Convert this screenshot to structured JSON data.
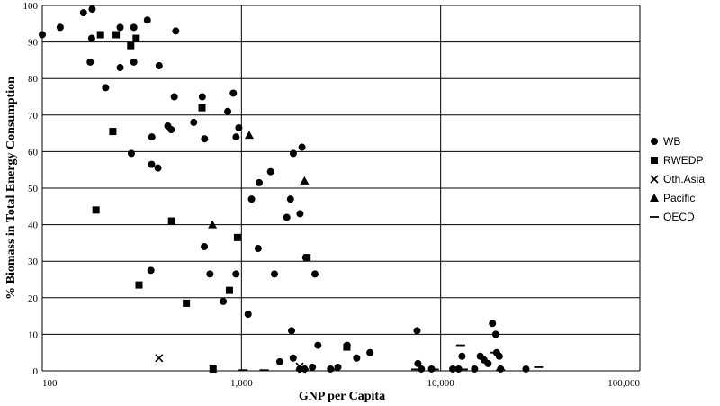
{
  "chart_data": {
    "type": "scatter",
    "x_scale": "log",
    "xlabel": "GNP per Capita",
    "ylabel": "% Biomass in Total Energy Consumption",
    "xlim": [
      100,
      100000
    ],
    "ylim": [
      0,
      100
    ],
    "x_ticks": [
      {
        "value": 100,
        "label": "100"
      },
      {
        "value": 1000,
        "label": "1,000"
      },
      {
        "value": 10000,
        "label": "10,000"
      },
      {
        "value": 100000,
        "label": "100,000"
      }
    ],
    "y_ticks": [
      0,
      10,
      20,
      30,
      40,
      50,
      60,
      70,
      80,
      90,
      100
    ],
    "grid": true,
    "legend_position": "right",
    "series": [
      {
        "name": "WB",
        "marker": "circle",
        "points": [
          [
            100,
            92
          ],
          [
            123,
            94
          ],
          [
            161,
            98
          ],
          [
            178,
            99
          ],
          [
            177,
            91
          ],
          [
            174,
            84.5
          ],
          [
            208,
            77.5
          ],
          [
            246,
            83
          ],
          [
            246,
            94
          ],
          [
            288,
            84.5
          ],
          [
            288,
            94
          ],
          [
            337,
            96
          ],
          [
            386,
            83.5
          ],
          [
            468,
            93
          ],
          [
            280,
            59.5
          ],
          [
            355,
            64
          ],
          [
            354,
            56.5
          ],
          [
            381,
            55.5
          ],
          [
            427,
            67
          ],
          [
            444,
            66
          ],
          [
            460,
            75
          ],
          [
            576,
            68
          ],
          [
            636,
            75
          ],
          [
            653,
            63.5
          ],
          [
            853,
            71
          ],
          [
            910,
            76
          ],
          [
            940,
            64
          ],
          [
            970,
            66.5
          ],
          [
            1124,
            47
          ],
          [
            1227,
            51.5
          ],
          [
            1400,
            54.5
          ],
          [
            1689,
            42
          ],
          [
            1762,
            47
          ],
          [
            1820,
            59.5
          ],
          [
            2013,
            61.2
          ],
          [
            1968,
            43
          ],
          [
            651,
            34
          ],
          [
            351,
            27.5
          ],
          [
            695,
            26.5
          ],
          [
            810,
            19
          ],
          [
            939,
            26.5
          ],
          [
            1080,
            15.5
          ],
          [
            1213,
            33.5
          ],
          [
            1464,
            26.5
          ],
          [
            2103,
            31
          ],
          [
            2338,
            26.5
          ],
          [
            1558,
            2.5
          ],
          [
            1785,
            11
          ],
          [
            1818,
            3.5
          ],
          [
            1962,
            0.5
          ],
          [
            2073,
            0.5
          ],
          [
            2271,
            1
          ],
          [
            2421,
            7
          ],
          [
            2799,
            0.5
          ],
          [
            3049,
            1
          ],
          [
            3394,
            7
          ],
          [
            3788,
            3.5
          ],
          [
            4418,
            5
          ],
          [
            7615,
            11
          ],
          [
            7690,
            2
          ],
          [
            8000,
            0.5
          ],
          [
            9000,
            0.5
          ],
          [
            11500,
            0.5
          ],
          [
            12300,
            0.5
          ],
          [
            12800,
            4
          ],
          [
            14800,
            0.5
          ],
          [
            15800,
            4
          ],
          [
            16500,
            3
          ],
          [
            17300,
            2
          ],
          [
            18200,
            13
          ],
          [
            18900,
            10
          ],
          [
            19100,
            5
          ],
          [
            19700,
            4
          ],
          [
            20000,
            0.5
          ],
          [
            26800,
            0.5
          ]
        ]
      },
      {
        "name": "RWEDP",
        "marker": "square",
        "points": [
          [
            196,
            92
          ],
          [
            235,
            92
          ],
          [
            278,
            89
          ],
          [
            296,
            91
          ],
          [
            226,
            65.5
          ],
          [
            186,
            44
          ],
          [
            306,
            23.5
          ],
          [
            446,
            41
          ],
          [
            529,
            18.5
          ],
          [
            634,
            72
          ],
          [
            720,
            0.5
          ],
          [
            870,
            22
          ],
          [
            955,
            36.5
          ],
          [
            2134,
            31
          ],
          [
            3380,
            6.5
          ]
        ]
      },
      {
        "name": "Oth.Asia",
        "marker": "x",
        "points": [
          [
            386,
            3.5
          ],
          [
            2020,
            0.5
          ],
          [
            1960,
            1.2
          ]
        ]
      },
      {
        "name": "Pacific",
        "marker": "triangle",
        "points": [
          [
            715,
            40
          ],
          [
            1094,
            64.5
          ],
          [
            2072,
            52
          ]
        ]
      },
      {
        "name": "OECD",
        "marker": "dash",
        "points": [
          [
            1020,
            0.2
          ],
          [
            1300,
            0.2
          ],
          [
            2071,
            0.4
          ],
          [
            2900,
            0.4
          ],
          [
            7500,
            0.4
          ],
          [
            9300,
            0.4
          ],
          [
            13000,
            0.4
          ],
          [
            12600,
            7
          ],
          [
            18700,
            5
          ],
          [
            31000,
            1
          ],
          [
            20000,
            0.2
          ]
        ]
      }
    ]
  }
}
